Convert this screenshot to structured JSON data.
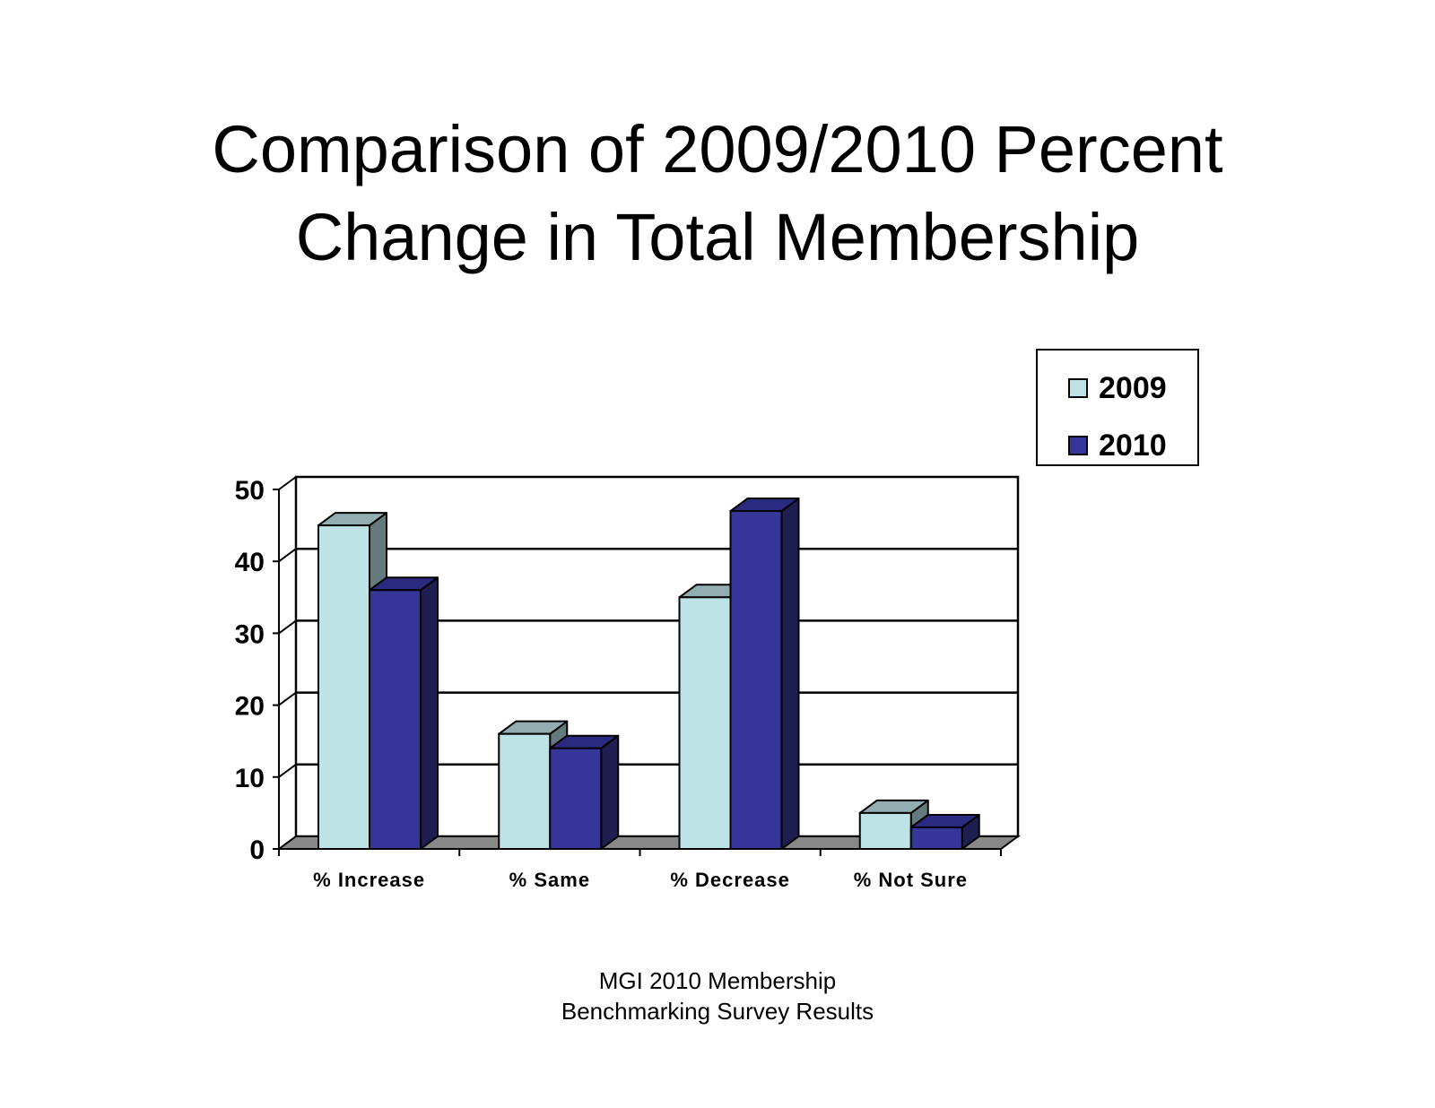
{
  "title": {
    "line1": "Comparison of 2009/2010 Percent",
    "line2": "Change in Total Membership"
  },
  "legend": {
    "items": [
      {
        "label": "2009",
        "color": "#BDE3E6"
      },
      {
        "label": "2010",
        "color": "#35359A"
      }
    ]
  },
  "footer": {
    "line1": "MGI 2010 Membership",
    "line2": "Benchmarking Survey Results"
  },
  "colors": {
    "series_2009": {
      "front": "#BDE3E6",
      "top": "#93AEB0",
      "side": "#647A7C"
    },
    "series_2010": {
      "front": "#35359A",
      "top": "#2A2A80",
      "side": "#1E1E50"
    },
    "floor": "#888888",
    "grid": "#000000"
  },
  "chart_data": {
    "type": "bar",
    "style": "3d-clustered-column",
    "title": "Comparison of 2009/2010 Percent Change in Total Membership",
    "xlabel": "",
    "ylabel": "",
    "categories": [
      "% Increase",
      "% Same",
      "% Decrease",
      "% Not Sure"
    ],
    "series": [
      {
        "name": "2009",
        "values": [
          45,
          16,
          35,
          5
        ]
      },
      {
        "name": "2010",
        "values": [
          36,
          14,
          47,
          3
        ]
      }
    ],
    "ylim": [
      0,
      50
    ],
    "yticks": [
      0,
      10,
      20,
      30,
      40,
      50
    ],
    "grid": true,
    "legend_position": "top-right",
    "source_note": "MGI 2010 Membership Benchmarking Survey Results"
  }
}
